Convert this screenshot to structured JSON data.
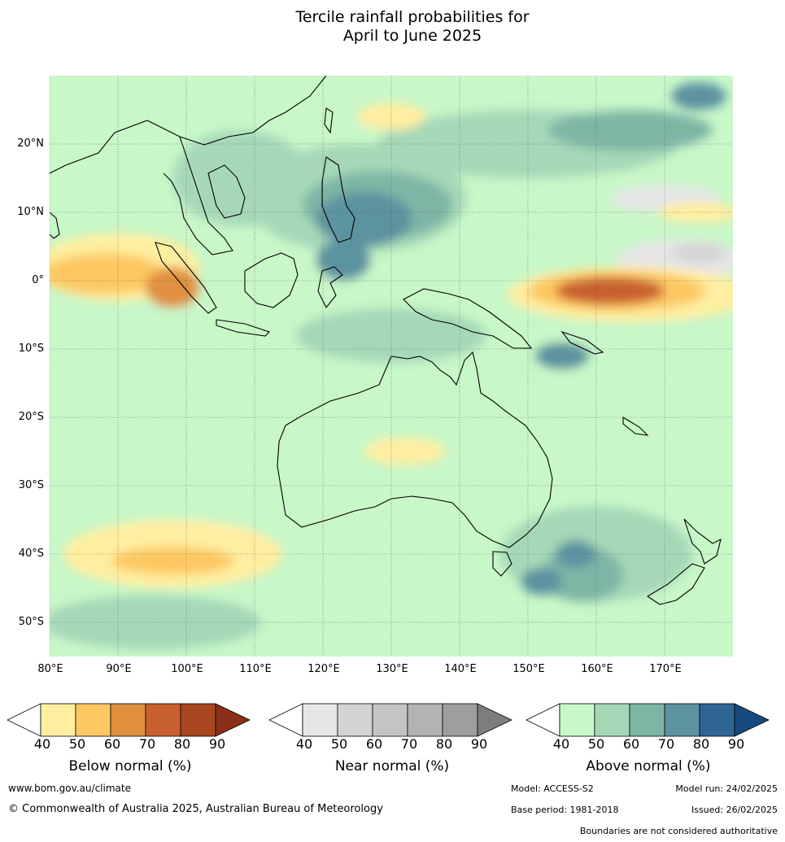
{
  "title_line1": "Tercile rainfall probabilities for",
  "title_line2": "April to June 2025",
  "lat_labels": [
    "20°N",
    "10°N",
    "0°",
    "10°S",
    "20°S",
    "30°S",
    "40°S",
    "50°S"
  ],
  "lon_labels": [
    "80°E",
    "90°E",
    "100°E",
    "110°E",
    "120°E",
    "130°E",
    "140°E",
    "150°E",
    "160°E",
    "170°E"
  ],
  "colorbars": [
    {
      "title": "Below normal (%)",
      "ticks": [
        "40",
        "50",
        "60",
        "70",
        "80",
        "90"
      ],
      "colors": [
        "#ffffff",
        "#ffeea0",
        "#fdc862",
        "#e0903f",
        "#c8612f",
        "#a94721",
        "#8c2f18"
      ]
    },
    {
      "title": "Near normal (%)",
      "ticks": [
        "40",
        "50",
        "60",
        "70",
        "80",
        "90"
      ],
      "colors": [
        "#ffffff",
        "#e6e6e6",
        "#d4d4d4",
        "#c4c4c4",
        "#b3b3b3",
        "#9e9e9e",
        "#7d7d7d"
      ]
    },
    {
      "title": "Above normal (%)",
      "ticks": [
        "40",
        "50",
        "60",
        "70",
        "80",
        "90"
      ],
      "colors": [
        "#ffffff",
        "#c8f7c8",
        "#a6d8b8",
        "#7eb6a6",
        "#5c93a0",
        "#2e6594",
        "#17497e"
      ]
    }
  ],
  "footer": {
    "website": "www.bom.gov.au/climate",
    "copyright": "© Commonwealth of Australia 2025, Australian Bureau of Meteorology",
    "model": "Model: ACCESS-S2",
    "model_run": "Model run: 24/02/2025",
    "base_period": "Base period: 1981-2018",
    "issued": "Issued: 26/02/2025",
    "disclaimer": "Boundaries are not considered authoritative"
  },
  "map_data": {
    "lon_range": [
      80,
      180
    ],
    "lat_range": [
      -55,
      30
    ],
    "lon_ticks": [
      80,
      90,
      100,
      110,
      120,
      130,
      140,
      150,
      160,
      170
    ],
    "lat_ticks": [
      20,
      10,
      0,
      -10,
      -20,
      -30,
      -40,
      -50
    ],
    "grid": true,
    "regions": [
      {
        "cat": "above",
        "level": 1,
        "lon": 130,
        "lat": -10,
        "rx": 48,
        "ry": 14
      },
      {
        "cat": "above",
        "level": 1,
        "lon": 100,
        "lat": -25,
        "rx": 20,
        "ry": 14
      },
      {
        "cat": "above",
        "level": 1,
        "lon": 150,
        "lat": 18,
        "rx": 28,
        "ry": 9
      },
      {
        "cat": "above",
        "level": 2,
        "lon": 125,
        "lat": 12,
        "rx": 16,
        "ry": 8
      },
      {
        "cat": "above",
        "level": 2,
        "lon": 150,
        "lat": 20,
        "rx": 22,
        "ry": 5
      },
      {
        "cat": "above",
        "level": 2,
        "lon": 108,
        "lat": 15,
        "rx": 10,
        "ry": 7
      },
      {
        "cat": "above",
        "level": 2,
        "lon": 130,
        "lat": -8,
        "rx": 14,
        "ry": 4
      },
      {
        "cat": "above",
        "level": 2,
        "lon": 160,
        "lat": -40,
        "rx": 14,
        "ry": 7
      },
      {
        "cat": "above",
        "level": 2,
        "lon": 95,
        "lat": -50,
        "rx": 16,
        "ry": 4
      },
      {
        "cat": "above",
        "level": 3,
        "lon": 128,
        "lat": 11,
        "rx": 11,
        "ry": 5
      },
      {
        "cat": "above",
        "level": 3,
        "lon": 165,
        "lat": 22,
        "rx": 12,
        "ry": 3
      },
      {
        "cat": "above",
        "level": 3,
        "lon": 158,
        "lat": -43,
        "rx": 6,
        "ry": 4
      },
      {
        "cat": "above",
        "level": 4,
        "lon": 126,
        "lat": 9,
        "rx": 7,
        "ry": 4
      },
      {
        "cat": "above",
        "level": 4,
        "lon": 123,
        "lat": 3,
        "rx": 4,
        "ry": 3
      },
      {
        "cat": "above",
        "level": 4,
        "lon": 175,
        "lat": 27,
        "rx": 4,
        "ry": 2
      },
      {
        "cat": "above",
        "level": 4,
        "lon": 155,
        "lat": -11,
        "rx": 4,
        "ry": 2
      },
      {
        "cat": "above",
        "level": 4,
        "lon": 157,
        "lat": -40,
        "rx": 3,
        "ry": 2
      },
      {
        "cat": "above",
        "level": 4,
        "lon": 152,
        "lat": -44,
        "rx": 3,
        "ry": 2
      },
      {
        "cat": "near",
        "level": 1,
        "lon": 172,
        "lat": 3,
        "rx": 9,
        "ry": 3
      },
      {
        "cat": "near",
        "level": 2,
        "lon": 175,
        "lat": 4,
        "rx": 4,
        "ry": 1.5
      },
      {
        "cat": "near",
        "level": 1,
        "lon": 170,
        "lat": 12,
        "rx": 8,
        "ry": 2
      },
      {
        "cat": "below",
        "level": 1,
        "lon": 90,
        "lat": 2,
        "rx": 12,
        "ry": 5
      },
      {
        "cat": "below",
        "level": 2,
        "lon": 88,
        "lat": 1,
        "rx": 9,
        "ry": 3
      },
      {
        "cat": "below",
        "level": 3,
        "lon": 98,
        "lat": -1,
        "rx": 4,
        "ry": 3
      },
      {
        "cat": "below",
        "level": 1,
        "lon": 165,
        "lat": -2,
        "rx": 18,
        "ry": 4
      },
      {
        "cat": "below",
        "level": 2,
        "lon": 163,
        "lat": -1.5,
        "rx": 13,
        "ry": 3
      },
      {
        "cat": "below",
        "level": 4,
        "lon": 162,
        "lat": -1.5,
        "rx": 8,
        "ry": 2
      },
      {
        "cat": "below",
        "level": 1,
        "lon": 175,
        "lat": 10,
        "rx": 6,
        "ry": 1.5
      },
      {
        "cat": "below",
        "level": 1,
        "lon": 98,
        "lat": -40,
        "rx": 16,
        "ry": 5
      },
      {
        "cat": "below",
        "level": 2,
        "lon": 98,
        "lat": -41,
        "rx": 9,
        "ry": 2
      },
      {
        "cat": "below",
        "level": 1,
        "lon": 132,
        "lat": -25,
        "rx": 6,
        "ry": 2
      },
      {
        "cat": "below",
        "level": 1,
        "lon": 130,
        "lat": 24,
        "rx": 5,
        "ry": 2
      }
    ]
  }
}
